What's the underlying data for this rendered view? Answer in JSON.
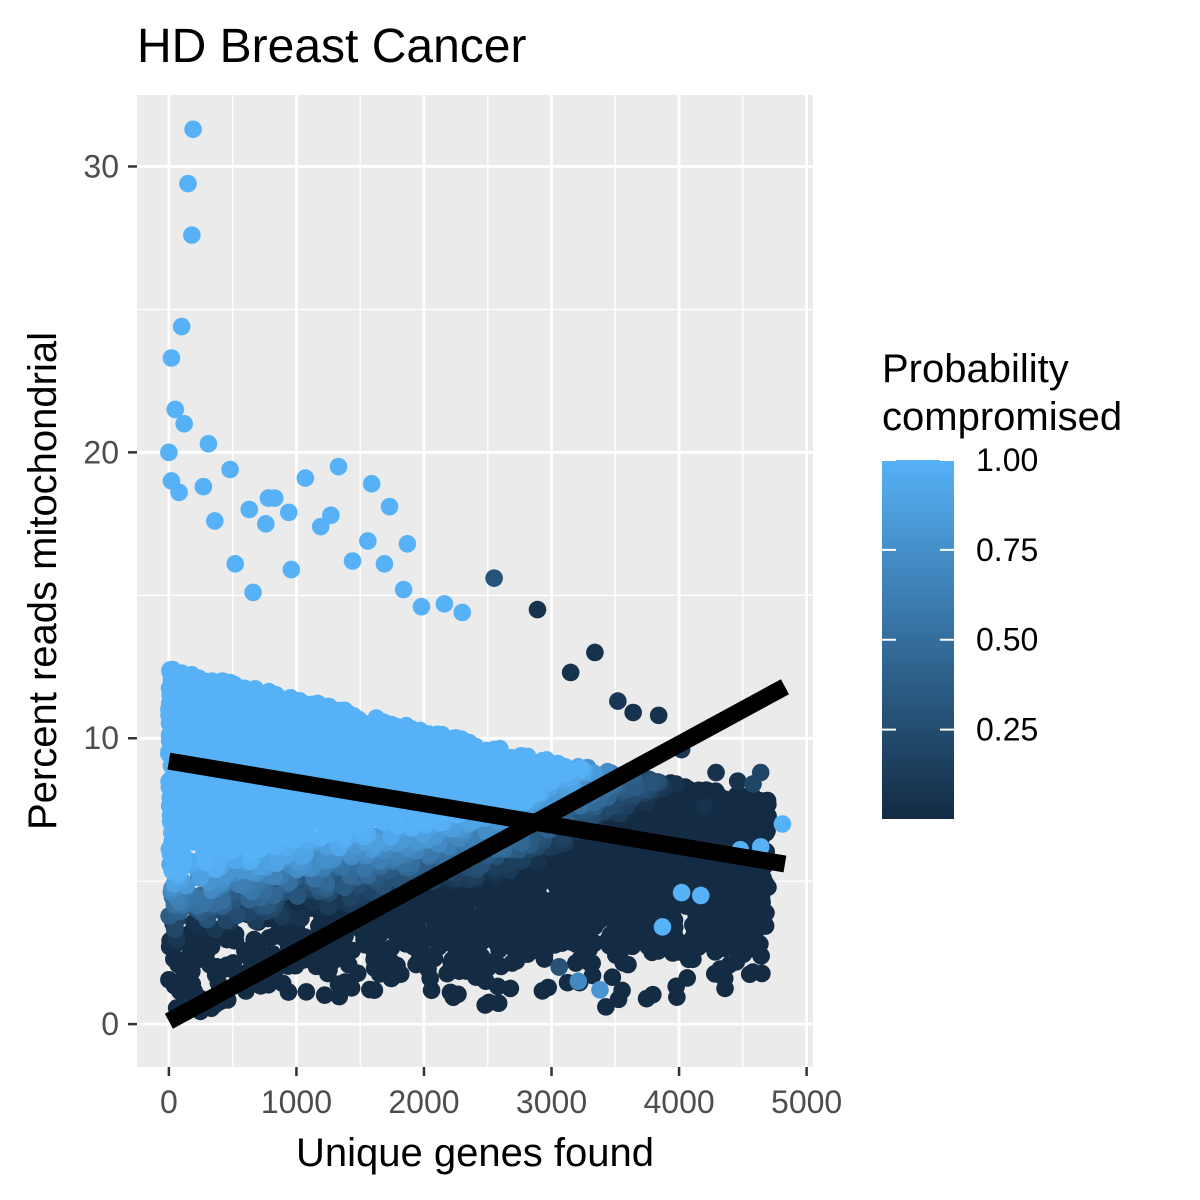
{
  "chart_data": {
    "type": "scatter",
    "title": "HD Breast Cancer",
    "xlabel": "Unique genes found",
    "ylabel": "Percent reads mitochondrial",
    "xlim": [
      -250,
      5050
    ],
    "ylim": [
      -1.5,
      32.5
    ],
    "x_ticks": [
      0,
      1000,
      2000,
      3000,
      4000,
      5000
    ],
    "y_ticks": [
      0,
      10,
      20,
      30
    ],
    "grid": true,
    "colors": {
      "panel": "#ebebeb",
      "grid": "#ffffff",
      "low": "#132b43",
      "high": "#56b1f7",
      "line": "#000000"
    },
    "legend": {
      "title_line1": "Probability",
      "title_line2": "compromised",
      "position": "right",
      "ticks": [
        1.0,
        0.75,
        0.5,
        0.25
      ],
      "tick_labels": [
        "1.00",
        "0.75",
        "0.50",
        "0.25"
      ],
      "range": [
        0,
        1
      ]
    },
    "points": [
      {
        "x": 190,
        "y": 31.3,
        "p": 1.0
      },
      {
        "x": 150,
        "y": 29.4,
        "p": 1.0
      },
      {
        "x": 180,
        "y": 27.6,
        "p": 1.0
      },
      {
        "x": 100,
        "y": 24.4,
        "p": 1.0
      },
      {
        "x": 20,
        "y": 23.3,
        "p": 1.0
      },
      {
        "x": 50,
        "y": 21.5,
        "p": 1.0
      },
      {
        "x": 120,
        "y": 21.0,
        "p": 1.0
      },
      {
        "x": 0,
        "y": 20.0,
        "p": 1.0
      },
      {
        "x": 310,
        "y": 20.3,
        "p": 1.0
      },
      {
        "x": 480,
        "y": 19.4,
        "p": 1.0
      },
      {
        "x": 1330,
        "y": 19.5,
        "p": 1.0
      },
      {
        "x": 1070,
        "y": 19.1,
        "p": 1.0
      },
      {
        "x": 1590,
        "y": 18.9,
        "p": 1.0
      },
      {
        "x": 20,
        "y": 19.0,
        "p": 1.0
      },
      {
        "x": 80,
        "y": 18.6,
        "p": 1.0
      },
      {
        "x": 270,
        "y": 18.8,
        "p": 1.0
      },
      {
        "x": 780,
        "y": 18.4,
        "p": 1.0
      },
      {
        "x": 830,
        "y": 18.4,
        "p": 1.0
      },
      {
        "x": 1730,
        "y": 18.1,
        "p": 1.0
      },
      {
        "x": 630,
        "y": 18.0,
        "p": 1.0
      },
      {
        "x": 940,
        "y": 17.9,
        "p": 1.0
      },
      {
        "x": 1270,
        "y": 17.8,
        "p": 1.0
      },
      {
        "x": 1190,
        "y": 17.4,
        "p": 1.0
      },
      {
        "x": 760,
        "y": 17.5,
        "p": 1.0
      },
      {
        "x": 360,
        "y": 17.6,
        "p": 1.0
      },
      {
        "x": 1870,
        "y": 16.8,
        "p": 1.0
      },
      {
        "x": 1560,
        "y": 16.9,
        "p": 1.0
      },
      {
        "x": 2550,
        "y": 15.6,
        "p": 0.3
      },
      {
        "x": 2890,
        "y": 14.5,
        "p": 0.05
      },
      {
        "x": 1440,
        "y": 16.2,
        "p": 1.0
      },
      {
        "x": 1690,
        "y": 16.1,
        "p": 1.0
      },
      {
        "x": 520,
        "y": 16.1,
        "p": 1.0
      },
      {
        "x": 960,
        "y": 15.9,
        "p": 1.0
      },
      {
        "x": 660,
        "y": 15.1,
        "p": 1.0
      },
      {
        "x": 1840,
        "y": 15.2,
        "p": 1.0
      },
      {
        "x": 1980,
        "y": 14.6,
        "p": 1.0
      },
      {
        "x": 2300,
        "y": 14.4,
        "p": 1.0
      },
      {
        "x": 2160,
        "y": 14.7,
        "p": 1.0
      },
      {
        "x": 3640,
        "y": 10.9,
        "p": 0.05
      },
      {
        "x": 3840,
        "y": 10.8,
        "p": 0.05
      },
      {
        "x": 4020,
        "y": 9.6,
        "p": 0.1
      },
      {
        "x": 4290,
        "y": 8.8,
        "p": 0.05
      },
      {
        "x": 4460,
        "y": 8.5,
        "p": 0.05
      },
      {
        "x": 4580,
        "y": 8.4,
        "p": 0.2
      },
      {
        "x": 4640,
        "y": 8.8,
        "p": 0.2
      },
      {
        "x": 4200,
        "y": 7.6,
        "p": 0.05
      },
      {
        "x": 4810,
        "y": 7.0,
        "p": 1.0
      },
      {
        "x": 4640,
        "y": 6.2,
        "p": 1.0
      },
      {
        "x": 4480,
        "y": 6.1,
        "p": 1.0
      },
      {
        "x": 4170,
        "y": 4.5,
        "p": 1.0
      },
      {
        "x": 4020,
        "y": 4.6,
        "p": 1.0
      },
      {
        "x": 3870,
        "y": 3.4,
        "p": 1.0
      },
      {
        "x": 3380,
        "y": 1.2,
        "p": 0.8
      },
      {
        "x": 3210,
        "y": 1.5,
        "p": 0.7
      },
      {
        "x": 3060,
        "y": 2.0,
        "p": 0.3
      },
      {
        "x": 3340,
        "y": 13.0,
        "p": 0.05
      },
      {
        "x": 3150,
        "y": 12.3,
        "p": 0.05
      },
      {
        "x": 3520,
        "y": 11.3,
        "p": 0.1
      }
    ],
    "lines": [
      {
        "x": [
          0,
          4830
        ],
        "y": [
          9.2,
          5.6
        ]
      },
      {
        "x": [
          0,
          4830
        ],
        "y": [
          0.1,
          11.8
        ]
      }
    ]
  }
}
